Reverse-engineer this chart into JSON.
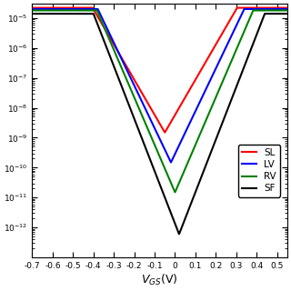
{
  "title": "",
  "xlabel": "$V_{GS}$(V)",
  "ylabel": "",
  "xlim": [
    -0.7,
    0.55
  ],
  "ylim_log": [
    1e-13,
    3e-05
  ],
  "xticks": [
    -0.7,
    -0.6,
    -0.5,
    -0.4,
    -0.3,
    -0.2,
    -0.1,
    0.0,
    0.1,
    0.2,
    0.3,
    0.4,
    0.5
  ],
  "legend_labels": [
    "SL",
    "LV",
    "RV",
    "SF"
  ],
  "legend_colors": [
    "red",
    "blue",
    "green",
    "black"
  ],
  "curves": [
    {
      "label": "SL",
      "color": "red",
      "vth": -0.05,
      "ss": 0.085,
      "ioff": 1.5e-09,
      "ion": 2.2e-05
    },
    {
      "label": "LV",
      "color": "blue",
      "vth": -0.02,
      "ss": 0.07,
      "ioff": 1.5e-10,
      "ion": 2e-05
    },
    {
      "label": "RV",
      "color": "green",
      "vth": 0.0,
      "ss": 0.063,
      "ioff": 1.5e-11,
      "ion": 1.8e-05
    },
    {
      "label": "SF",
      "color": "black",
      "vth": 0.02,
      "ss": 0.057,
      "ioff": 6e-13,
      "ion": 1.4e-05
    }
  ],
  "background_color": "white",
  "line_width": 1.5,
  "figsize": [
    3.2,
    3.2
  ],
  "dpi": 100
}
